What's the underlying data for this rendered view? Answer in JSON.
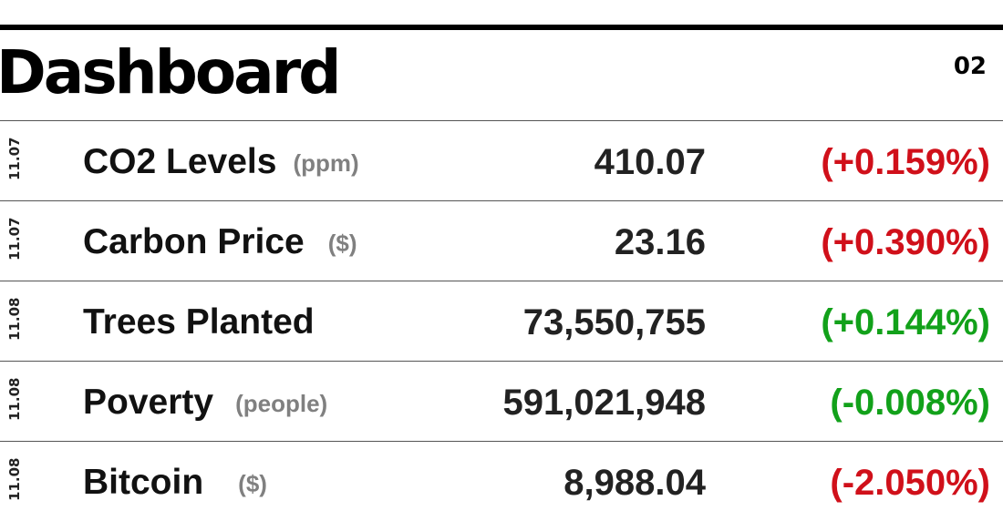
{
  "header": {
    "title": "Dashboard",
    "page_number": "02"
  },
  "colors": {
    "up": "#d0101a",
    "down_good": "#12a11a"
  },
  "rows": [
    {
      "date": "11.07",
      "name": "CO2 Levels",
      "unit": "(ppm)",
      "value": "410.07",
      "change": "(+0.159%)",
      "change_color": "#d0101a"
    },
    {
      "date": "11.07",
      "name": "Carbon Price",
      "unit": "($)",
      "value": "23.16",
      "change": "(+0.390%)",
      "change_color": "#d0101a"
    },
    {
      "date": "11.08",
      "name": "Trees Planted",
      "unit": "",
      "value": "73,550,755",
      "change": "(+0.144%)",
      "change_color": "#12a11a"
    },
    {
      "date": "11.08",
      "name": "Poverty",
      "unit": "(people)",
      "value": "591,021,948",
      "change": "(-0.008%)",
      "change_color": "#12a11a"
    },
    {
      "date": "11.08",
      "name": "Bitcoin",
      "unit": "($)",
      "value": "8,988.04",
      "change": "(-2.050%)",
      "change_color": "#d0101a"
    }
  ]
}
